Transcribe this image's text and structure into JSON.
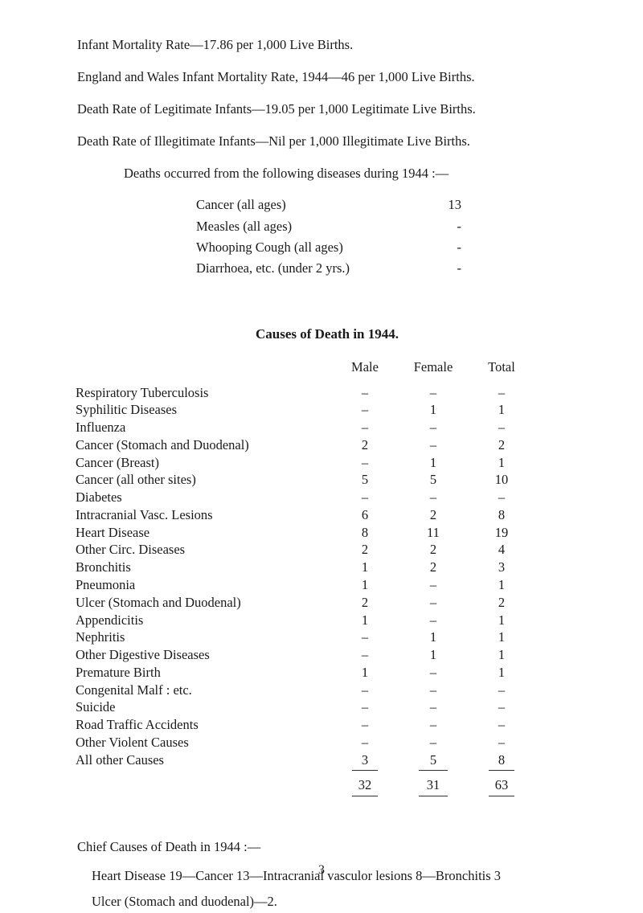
{
  "intro": {
    "p1": "Infant Mortality Rate—17.86 per 1,000 Live Births.",
    "p2": "England and Wales Infant Mortality Rate, 1944—46 per 1,000 Live Births.",
    "p3": "Death Rate of Legitimate Infants—19.05 per 1,000 Legitimate Live Births.",
    "p4": "Death Rate of Illegitimate Infants—Nil per 1,000 Illegitimate Live Births.",
    "p5": "Deaths occurred from the following diseases during 1944 :—"
  },
  "diseases_list": [
    {
      "label": "Cancer (all ages)",
      "value": "13"
    },
    {
      "label": "Measles (all ages)",
      "value": "-"
    },
    {
      "label": "Whooping Cough (all ages)",
      "value": "-"
    },
    {
      "label": "Diarrhoea, etc. (under 2 yrs.)",
      "value": "-"
    }
  ],
  "section_title": "Causes of Death in 1944.",
  "table": {
    "headers": {
      "male": "Male",
      "female": "Female",
      "total": "Total"
    },
    "rows": [
      {
        "name": "Respiratory Tuberculosis",
        "m": "–",
        "f": "–",
        "t": "–"
      },
      {
        "name": "Syphilitic Diseases",
        "m": "–",
        "f": "1",
        "t": "1"
      },
      {
        "name": "Influenza",
        "m": "–",
        "f": "–",
        "t": "–"
      },
      {
        "name": "Cancer (Stomach and Duodenal)",
        "m": "2",
        "f": "–",
        "t": "2"
      },
      {
        "name": "Cancer (Breast)",
        "m": "–",
        "f": "1",
        "t": "1"
      },
      {
        "name": "Cancer (all other sites)",
        "m": "5",
        "f": "5",
        "t": "10"
      },
      {
        "name": "Diabetes",
        "m": "–",
        "f": "–",
        "t": "–"
      },
      {
        "name": "Intracranial Vasc. Lesions",
        "m": "6",
        "f": "2",
        "t": "8"
      },
      {
        "name": "Heart Disease",
        "m": "8",
        "f": "11",
        "t": "19"
      },
      {
        "name": "Other Circ. Diseases",
        "m": "2",
        "f": "2",
        "t": "4"
      },
      {
        "name": "Bronchitis",
        "m": "1",
        "f": "2",
        "t": "3"
      },
      {
        "name": "Pneumonia",
        "m": "1",
        "f": "–",
        "t": "1"
      },
      {
        "name": "Ulcer (Stomach and Duodenal)",
        "m": "2",
        "f": "–",
        "t": "2"
      },
      {
        "name": "Appendicitis",
        "m": "1",
        "f": "–",
        "t": "1"
      },
      {
        "name": "Nephritis",
        "m": "–",
        "f": "1",
        "t": "1"
      },
      {
        "name": "Other Digestive Diseases",
        "m": "–",
        "f": "1",
        "t": "1"
      },
      {
        "name": "Premature Birth",
        "m": "1",
        "f": "–",
        "t": "1"
      },
      {
        "name": "Congenital Malf : etc.",
        "m": "–",
        "f": "–",
        "t": "–"
      },
      {
        "name": "Suicide",
        "m": "–",
        "f": "–",
        "t": "–"
      },
      {
        "name": "Road Traffic Accidents",
        "m": "–",
        "f": "–",
        "t": "–"
      },
      {
        "name": "Other Violent Causes",
        "m": "–",
        "f": "–",
        "t": "–"
      },
      {
        "name": "All other Causes",
        "m": "3",
        "f": "5",
        "t": "8"
      }
    ],
    "totals": {
      "m": "32",
      "f": "31",
      "t": "63"
    }
  },
  "chief": {
    "heading": "Chief Causes of Death in 1944 :—",
    "line1": "Heart Disease 19—Cancer 13—Intracranial vasculor lesions 8—Bronchitis 3",
    "line2": "Ulcer (Stomach and duodenal)—2."
  },
  "page_number": "3"
}
